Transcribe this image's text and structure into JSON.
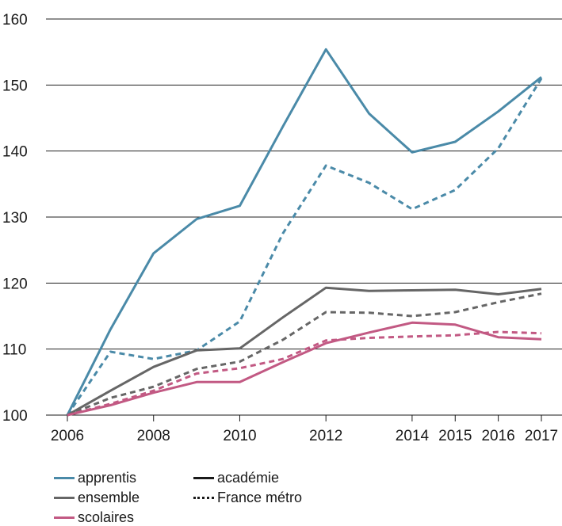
{
  "chart_data": {
    "type": "line",
    "title": "",
    "xlabel": "",
    "ylabel": "",
    "x": [
      2006,
      2007,
      2008,
      2009,
      2010,
      2011,
      2012,
      2013,
      2014,
      2015,
      2016,
      2017
    ],
    "x_ticks": [
      "2006",
      "2008",
      "2010",
      "2012",
      "2014",
      "2015",
      "2016",
      "2017"
    ],
    "y_ticks": [
      "100",
      "110",
      "120",
      "130",
      "140",
      "150",
      "160"
    ],
    "ylim": [
      100,
      160
    ],
    "grid": true,
    "series": [
      {
        "name": "apprentis",
        "scope": "académie",
        "color": "#4a8aa8",
        "dashed": false,
        "values": [
          100,
          113,
          124.5,
          129.7,
          131.7,
          143.7,
          155.4,
          145.7,
          139.8,
          141.4,
          146,
          151.2
        ]
      },
      {
        "name": "apprentis",
        "scope": "France métro",
        "color": "#4a8aa8",
        "dashed": true,
        "values": [
          100,
          109.6,
          108.5,
          109.8,
          114.2,
          127.5,
          137.8,
          135.2,
          131.2,
          134.1,
          140.4,
          151
        ]
      },
      {
        "name": "ensemble",
        "scope": "académie",
        "color": "#666666",
        "dashed": false,
        "values": [
          100,
          103.7,
          107.3,
          109.8,
          110.1,
          114.8,
          119.3,
          118.8,
          118.9,
          119,
          118.3,
          119.1
        ]
      },
      {
        "name": "ensemble",
        "scope": "France métro",
        "color": "#666666",
        "dashed": true,
        "values": [
          100,
          102.6,
          104.3,
          107,
          108.1,
          111.4,
          115.6,
          115.5,
          115,
          115.6,
          117.1,
          118.4
        ]
      },
      {
        "name": "scolaires",
        "scope": "académie",
        "color": "#c25983",
        "dashed": false,
        "values": [
          100,
          101.5,
          103.4,
          105,
          105,
          108,
          110.9,
          112.5,
          114,
          113.7,
          111.8,
          111.5
        ]
      },
      {
        "name": "scolaires",
        "scope": "France métro",
        "color": "#c25983",
        "dashed": true,
        "values": [
          100,
          101.7,
          103.7,
          106.3,
          107.1,
          108.5,
          111.3,
          111.7,
          111.9,
          112.1,
          112.6,
          112.4
        ]
      }
    ],
    "legend": {
      "placement": "bottom",
      "items": [
        {
          "label": "apprentis",
          "color": "#4a8aa8",
          "style": "solid"
        },
        {
          "label": "académie",
          "color": "#1a1a1a",
          "style": "solid"
        },
        {
          "label": "ensemble",
          "color": "#666666",
          "style": "solid"
        },
        {
          "label": "France métro",
          "color": "#1a1a1a",
          "style": "dotted"
        },
        {
          "label": "scolaires",
          "color": "#c25983",
          "style": "solid"
        }
      ]
    }
  }
}
